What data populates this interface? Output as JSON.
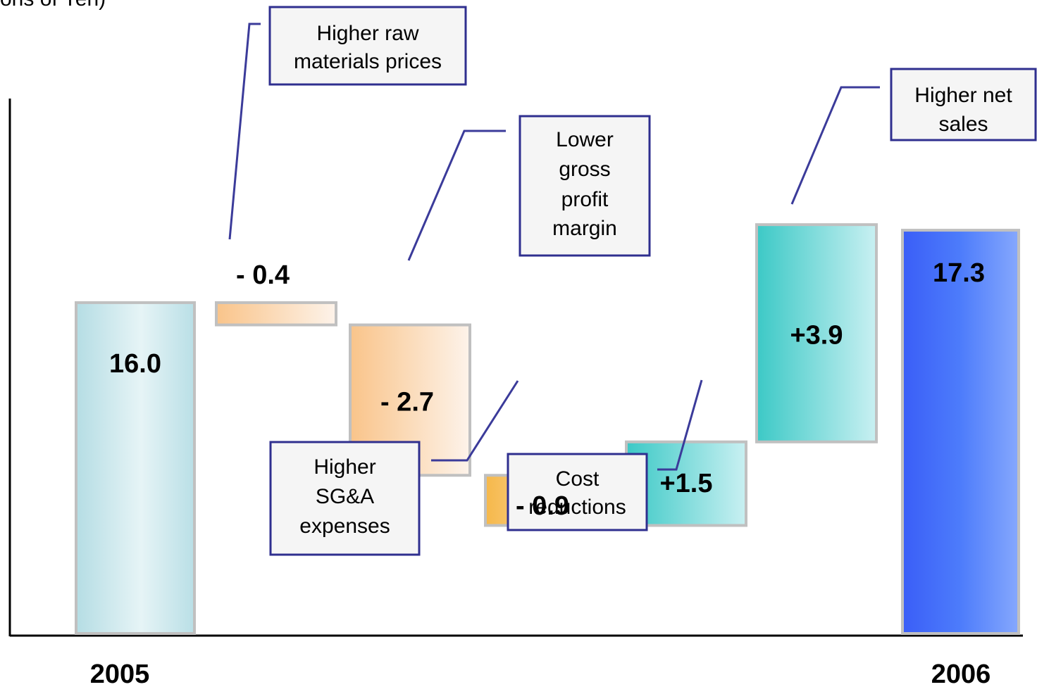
{
  "unit_label": "ons of Yen)",
  "chart_data": {
    "type": "waterfall",
    "title": "",
    "xlabel": "",
    "ylabel": "",
    "ylim": [
      10.06,
      18.4
    ],
    "grid": false,
    "steps": [
      {
        "kind": "total",
        "category": "2005",
        "value": 16.0,
        "label": "16.0",
        "color": "#c8e8ee"
      },
      {
        "kind": "delta",
        "value": -0.4,
        "label": "- 0.4",
        "note": "Higher raw materials prices",
        "color": "#f9c48a"
      },
      {
        "kind": "delta",
        "value": -2.7,
        "label": "- 2.7",
        "note": "Lower gross profit margin",
        "color": "#f9c48a"
      },
      {
        "kind": "delta",
        "value": -0.9,
        "label": "- 0.9",
        "note": "Higher SG&A expenses",
        "color": "#f6b84a"
      },
      {
        "kind": "delta",
        "value": 1.5,
        "label": "+1.5",
        "note": "Cost reductions",
        "color": "#3cc9c6"
      },
      {
        "kind": "delta",
        "value": 3.9,
        "label": "+3.9",
        "note": "Higher net sales",
        "color": "#3cc9c6"
      },
      {
        "kind": "total",
        "category": "2006",
        "value": 17.3,
        "label": "17.3",
        "color": "#3f6df7"
      }
    ]
  }
}
